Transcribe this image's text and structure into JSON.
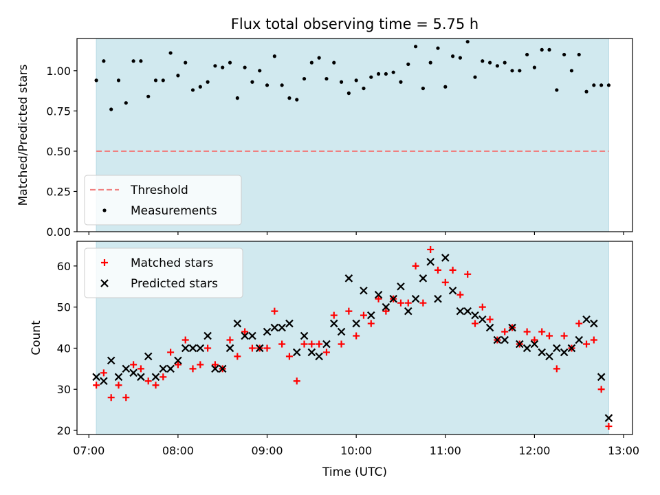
{
  "chart_data": {
    "title": "Flux total observing time = 5.75 h",
    "xlabel": "Time (UTC)",
    "x_ticks": [
      "07:00",
      "08:00",
      "09:00",
      "10:00",
      "11:00",
      "12:00",
      "13:00"
    ],
    "xlim": [
      "06:52",
      "13:06"
    ],
    "observing_window": {
      "start": "07:05",
      "end": "12:50",
      "color": "#d1e9ef"
    },
    "panels": [
      {
        "type": "scatter",
        "ylabel": "Matched/Predicted stars",
        "ylim": [
          0,
          1.2
        ],
        "y_ticks": [
          "0.00",
          "0.25",
          "0.50",
          "0.75",
          "1.00"
        ],
        "threshold": {
          "name": "Threshold",
          "value": 0.5,
          "color": "#f08080"
        },
        "legend_position": "lower-left",
        "series": [
          {
            "name": "Measurements",
            "color": "#000000",
            "x": [
              "07:05",
              "07:10",
              "07:15",
              "07:20",
              "07:25",
              "07:30",
              "07:35",
              "07:40",
              "07:45",
              "07:50",
              "07:55",
              "08:00",
              "08:05",
              "08:10",
              "08:15",
              "08:20",
              "08:25",
              "08:30",
              "08:35",
              "08:40",
              "08:45",
              "08:50",
              "08:55",
              "09:00",
              "09:05",
              "09:10",
              "09:15",
              "09:20",
              "09:25",
              "09:30",
              "09:35",
              "09:40",
              "09:45",
              "09:50",
              "09:55",
              "10:00",
              "10:05",
              "10:10",
              "10:15",
              "10:20",
              "10:25",
              "10:30",
              "10:35",
              "10:40",
              "10:45",
              "10:50",
              "10:55",
              "11:00",
              "11:05",
              "11:10",
              "11:15",
              "11:20",
              "11:25",
              "11:30",
              "11:35",
              "11:40",
              "11:45",
              "11:50",
              "11:55",
              "12:00",
              "12:05",
              "12:10",
              "12:15",
              "12:20",
              "12:25",
              "12:30",
              "12:35",
              "12:40",
              "12:45",
              "12:50"
            ],
            "y": [
              0.94,
              1.06,
              0.76,
              0.94,
              0.8,
              1.06,
              1.06,
              0.84,
              0.94,
              0.94,
              1.11,
              0.97,
              1.05,
              0.88,
              0.9,
              0.93,
              1.03,
              1.02,
              1.05,
              0.83,
              1.02,
              0.93,
              1.0,
              0.91,
              1.09,
              0.91,
              0.83,
              0.82,
              0.95,
              1.05,
              1.08,
              0.95,
              1.05,
              0.93,
              0.86,
              0.94,
              0.89,
              0.96,
              0.98,
              0.98,
              0.99,
              0.93,
              1.04,
              1.15,
              0.89,
              1.05,
              1.14,
              0.9,
              1.09,
              1.08,
              1.18,
              0.96,
              1.06,
              1.05,
              1.03,
              1.05,
              1.0,
              1.0,
              1.1,
              1.02,
              1.13,
              1.13,
              0.88,
              1.1,
              1.0,
              1.1,
              0.87,
              0.91,
              0.91,
              0.91
            ]
          }
        ]
      },
      {
        "type": "scatter",
        "ylabel": "Count",
        "ylim": [
          19,
          66
        ],
        "y_ticks": [
          "20",
          "30",
          "40",
          "50",
          "60"
        ],
        "legend_position": "upper-left",
        "series": [
          {
            "name": "Matched stars",
            "marker": "plus",
            "color": "#ff0000",
            "x": [
              "07:05",
              "07:10",
              "07:15",
              "07:20",
              "07:25",
              "07:30",
              "07:35",
              "07:40",
              "07:45",
              "07:50",
              "07:55",
              "08:00",
              "08:05",
              "08:10",
              "08:15",
              "08:20",
              "08:25",
              "08:30",
              "08:35",
              "08:40",
              "08:45",
              "08:50",
              "08:55",
              "09:00",
              "09:05",
              "09:10",
              "09:15",
              "09:20",
              "09:25",
              "09:30",
              "09:35",
              "09:40",
              "09:45",
              "09:50",
              "09:55",
              "10:00",
              "10:05",
              "10:10",
              "10:15",
              "10:20",
              "10:25",
              "10:30",
              "10:35",
              "10:40",
              "10:45",
              "10:50",
              "10:55",
              "11:00",
              "11:05",
              "11:10",
              "11:15",
              "11:20",
              "11:25",
              "11:30",
              "11:35",
              "11:40",
              "11:45",
              "11:50",
              "11:55",
              "12:00",
              "12:05",
              "12:10",
              "12:15",
              "12:20",
              "12:25",
              "12:30",
              "12:35",
              "12:40",
              "12:45",
              "12:50"
            ],
            "y": [
              31,
              34,
              28,
              31,
              28,
              36,
              35,
              32,
              31,
              33,
              39,
              36,
              42,
              35,
              36,
              40,
              36,
              35,
              42,
              38,
              44,
              40,
              40,
              40,
              49,
              41,
              38,
              32,
              41,
              41,
              41,
              39,
              48,
              41,
              49,
              43,
              48,
              46,
              52,
              49,
              52,
              51,
              51,
              60,
              51,
              64,
              59,
              56,
              59,
              53,
              58,
              46,
              50,
              47,
              42,
              44,
              45,
              41,
              44,
              42,
              44,
              43,
              35,
              43,
              40,
              46,
              41,
              42,
              30,
              21
            ]
          },
          {
            "name": "Predicted stars",
            "marker": "x",
            "color": "#000000",
            "x": [
              "07:05",
              "07:10",
              "07:15",
              "07:20",
              "07:25",
              "07:30",
              "07:35",
              "07:40",
              "07:45",
              "07:50",
              "07:55",
              "08:00",
              "08:05",
              "08:10",
              "08:15",
              "08:20",
              "08:25",
              "08:30",
              "08:35",
              "08:40",
              "08:45",
              "08:50",
              "08:55",
              "09:00",
              "09:05",
              "09:10",
              "09:15",
              "09:20",
              "09:25",
              "09:30",
              "09:35",
              "09:40",
              "09:45",
              "09:50",
              "09:55",
              "10:00",
              "10:05",
              "10:10",
              "10:15",
              "10:20",
              "10:25",
              "10:30",
              "10:35",
              "10:40",
              "10:45",
              "10:50",
              "10:55",
              "11:00",
              "11:05",
              "11:10",
              "11:15",
              "11:20",
              "11:25",
              "11:30",
              "11:35",
              "11:40",
              "11:45",
              "11:50",
              "11:55",
              "12:00",
              "12:05",
              "12:10",
              "12:15",
              "12:20",
              "12:25",
              "12:30",
              "12:35",
              "12:40",
              "12:45",
              "12:50"
            ],
            "y": [
              33,
              32,
              37,
              33,
              35,
              34,
              33,
              38,
              33,
              35,
              35,
              37,
              40,
              40,
              40,
              43,
              35,
              35,
              40,
              46,
              43,
              43,
              40,
              44,
              45,
              45,
              46,
              39,
              43,
              39,
              38,
              41,
              46,
              44,
              57,
              46,
              54,
              48,
              53,
              50,
              52,
              55,
              49,
              52,
              57,
              61,
              52,
              62,
              54,
              49,
              49,
              48,
              47,
              45,
              42,
              42,
              45,
              41,
              40,
              41,
              39,
              38,
              40,
              39,
              40,
              42,
              47,
              46,
              33,
              23
            ]
          }
        ]
      }
    ]
  }
}
